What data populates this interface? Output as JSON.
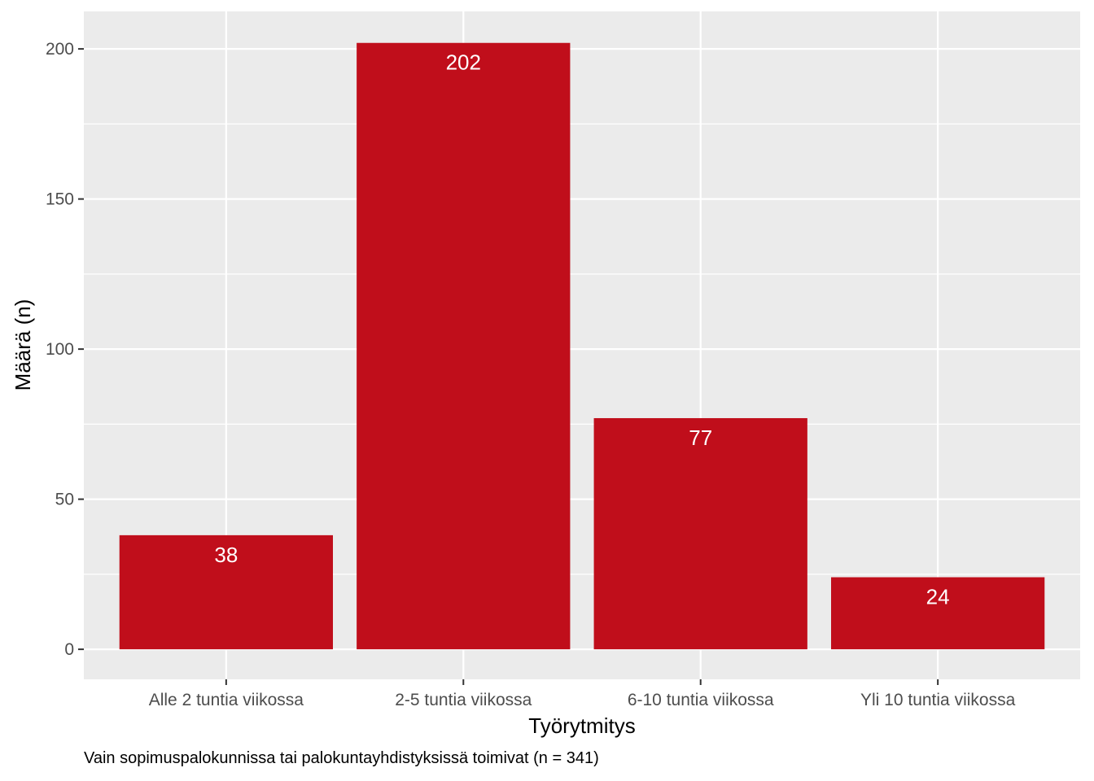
{
  "chart_data": {
    "type": "bar",
    "categories": [
      "Alle 2 tuntia viikossa",
      "2-5 tuntia viikossa",
      "6-10 tuntia viikossa",
      "Yli 10 tuntia viikossa"
    ],
    "values": [
      38,
      202,
      77,
      24
    ],
    "data_labels": [
      "38",
      "202",
      "77",
      "24"
    ],
    "xlabel": "Työrytmitys",
    "ylabel": "Määrä (n)",
    "ylim": [
      -10,
      212.5
    ],
    "yticks": [
      0,
      50,
      100,
      150,
      200
    ],
    "ytick_labels": [
      "0",
      "50",
      "100",
      "150",
      "200"
    ],
    "grid": true,
    "caption": "Vain sopimuspalokunnissa tai palokuntayhdistyksissä toimivat (n = 341)"
  },
  "colors": {
    "bar": "#c00e1b",
    "panel": "#ebebeb",
    "grid_major": "#ffffff",
    "tick_label": "#4d4d4d"
  }
}
